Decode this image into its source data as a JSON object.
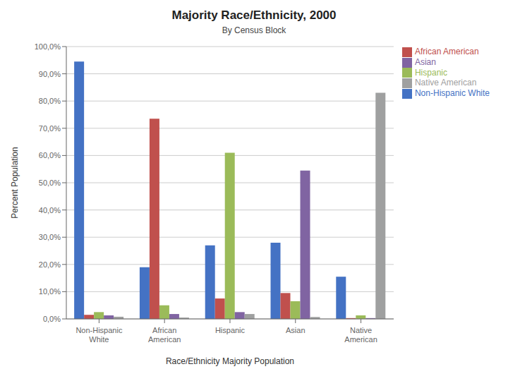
{
  "chart_data": {
    "type": "bar",
    "title": "Majority Race/Ethnicity, 2000",
    "subtitle": "By Census Block",
    "xlabel": "Race/Ethnicity Majority Population",
    "ylabel": "Percent Population",
    "categories": [
      "Non-Hispanic White",
      "African American",
      "Hispanic",
      "Asian",
      "Native American"
    ],
    "series": [
      {
        "name": "Non-Hispanic White",
        "color": "#4472C4",
        "values": [
          0.945,
          0.19,
          0.27,
          0.28,
          0.155
        ]
      },
      {
        "name": "African American",
        "color": "#C0504D",
        "values": [
          0.015,
          0.735,
          0.075,
          0.095,
          0.003
        ]
      },
      {
        "name": "Hispanic",
        "color": "#9BBB59",
        "values": [
          0.025,
          0.05,
          0.61,
          0.065,
          0.013
        ]
      },
      {
        "name": "Asian",
        "color": "#8064A2",
        "values": [
          0.013,
          0.018,
          0.025,
          0.545,
          0.003
        ]
      },
      {
        "name": "Native American",
        "color": "#9FA0A0",
        "values": [
          0.008,
          0.005,
          0.018,
          0.007,
          0.83
        ]
      }
    ],
    "ylim": [
      0,
      1.0
    ],
    "yticks": [
      {
        "value": 0.0,
        "label": "0,0%"
      },
      {
        "value": 0.1,
        "label": "10,0%"
      },
      {
        "value": 0.2,
        "label": "20,0%"
      },
      {
        "value": 0.3,
        "label": "30,0%"
      },
      {
        "value": 0.4,
        "label": "40,0%"
      },
      {
        "value": 0.5,
        "label": "50,0%"
      },
      {
        "value": 0.6,
        "label": "60,0%"
      },
      {
        "value": 0.7,
        "label": "70,0%"
      },
      {
        "value": 0.8,
        "label": "80,0%"
      },
      {
        "value": 0.9,
        "label": "90,0%"
      },
      {
        "value": 1.0,
        "label": "100,0%"
      }
    ],
    "grid": true,
    "legend": "upper right"
  }
}
